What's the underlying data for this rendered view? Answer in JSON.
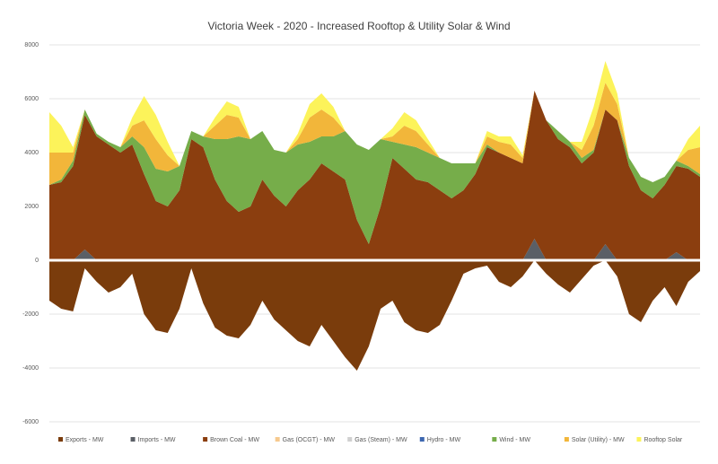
{
  "chart_data": {
    "type": "stacked-area",
    "title": "Victoria Week - 2020 - Increased Rooftop & Utility Solar & Wind",
    "ylim": [
      -6000,
      8000
    ],
    "yticks": [
      -6000,
      -4000,
      -2000,
      0,
      2000,
      4000,
      6000,
      8000
    ],
    "grid": true,
    "legend": "bottom",
    "series": [
      {
        "name": "Exports - MW",
        "color": "#7a3c0c",
        "values": [
          -1500,
          -1800,
          -1900,
          -300,
          -800,
          -1200,
          -1000,
          -500,
          -2000,
          -2600,
          -2700,
          -1800,
          -300,
          -1600,
          -2500,
          -2800,
          -2900,
          -2400,
          -1500,
          -2200,
          -2600,
          -3000,
          -3200,
          -2400,
          -3000,
          -3600,
          -4100,
          -3200,
          -1800,
          -1500,
          -2300,
          -2600,
          -2700,
          -2400,
          -1500,
          -500,
          -300,
          -200,
          -800,
          -1000,
          -600,
          0,
          -500,
          -900,
          -1200,
          -700,
          -200,
          0,
          -600,
          -2000,
          -2300,
          -1500,
          -1000,
          -1700,
          -800,
          -400
        ]
      },
      {
        "name": "Imports - MW",
        "color": "#5a5f66",
        "values": [
          0,
          0,
          0,
          400,
          0,
          0,
          0,
          0,
          0,
          0,
          0,
          0,
          0,
          0,
          0,
          0,
          0,
          0,
          0,
          0,
          0,
          0,
          0,
          0,
          0,
          0,
          0,
          0,
          0,
          0,
          0,
          0,
          0,
          0,
          0,
          0,
          0,
          0,
          0,
          0,
          0,
          800,
          0,
          0,
          0,
          0,
          0,
          600,
          0,
          0,
          0,
          0,
          0,
          300,
          0,
          0
        ]
      },
      {
        "name": "Brown Coal - MW",
        "color": "#8b3e0f",
        "values": [
          2800,
          2900,
          3500,
          5000,
          4600,
          4300,
          4000,
          4300,
          3200,
          2200,
          2000,
          2600,
          4500,
          4200,
          3000,
          2200,
          1800,
          2000,
          3000,
          2400,
          2000,
          2600,
          3000,
          3600,
          3300,
          3000,
          1500,
          600,
          2000,
          3800,
          3400,
          3000,
          2900,
          2600,
          2300,
          2600,
          3200,
          4200,
          4000,
          3800,
          3600,
          5500,
          5200,
          4500,
          4200,
          3600,
          4000,
          5000,
          5200,
          3500,
          2600,
          2300,
          2800,
          3200,
          3400,
          3100
        ]
      },
      {
        "name": "Gas (OCGT) - MW",
        "color": "#f6c98e",
        "values": [
          0,
          0,
          0,
          0,
          0,
          0,
          0,
          0,
          0,
          0,
          0,
          0,
          0,
          0,
          0,
          0,
          0,
          0,
          0,
          0,
          0,
          0,
          0,
          0,
          0,
          0,
          0,
          0,
          0,
          0,
          0,
          0,
          0,
          0,
          0,
          0,
          0,
          0,
          0,
          0,
          0,
          0,
          0,
          0,
          0,
          0,
          0,
          0,
          0,
          0,
          0,
          0,
          0,
          0,
          0,
          0
        ]
      },
      {
        "name": "Gas (Steam) - MW",
        "color": "#d0d0d0",
        "values": [
          0,
          0,
          0,
          0,
          0,
          0,
          0,
          0,
          0,
          0,
          0,
          0,
          0,
          0,
          0,
          0,
          0,
          0,
          0,
          0,
          0,
          0,
          0,
          0,
          0,
          0,
          0,
          0,
          0,
          0,
          0,
          0,
          0,
          0,
          0,
          0,
          0,
          0,
          0,
          0,
          0,
          0,
          0,
          0,
          0,
          0,
          0,
          0,
          0,
          0,
          0,
          0,
          0,
          0,
          0,
          0
        ]
      },
      {
        "name": "Hydro - MW",
        "color": "#3d67b0",
        "values": [
          0,
          0,
          0,
          0,
          0,
          0,
          0,
          0,
          0,
          0,
          0,
          0,
          0,
          0,
          0,
          0,
          0,
          0,
          0,
          0,
          0,
          0,
          0,
          0,
          0,
          0,
          0,
          0,
          0,
          0,
          0,
          0,
          0,
          0,
          0,
          0,
          0,
          0,
          0,
          0,
          0,
          0,
          0,
          0,
          0,
          0,
          0,
          0,
          0,
          0,
          0,
          0,
          0,
          0,
          0,
          0
        ]
      },
      {
        "name": "Wind - MW",
        "color": "#76ad4a",
        "values": [
          0,
          100,
          200,
          200,
          100,
          100,
          200,
          300,
          1000,
          1200,
          1300,
          900,
          300,
          400,
          1500,
          2300,
          2800,
          2500,
          1800,
          1700,
          2000,
          1700,
          1400,
          1000,
          1300,
          1800,
          2800,
          3500,
          2500,
          600,
          900,
          1200,
          1100,
          1200,
          1300,
          1000,
          400,
          100,
          0,
          0,
          0,
          0,
          0,
          300,
          200,
          200,
          100,
          0,
          0,
          300,
          500,
          600,
          300,
          200,
          100,
          100
        ]
      },
      {
        "name": "Solar (Utility) - MW",
        "color": "#f2b63a",
        "values": [
          1200,
          1000,
          300,
          0,
          0,
          0,
          0,
          400,
          1000,
          1100,
          600,
          0,
          0,
          0,
          500,
          900,
          700,
          0,
          0,
          0,
          0,
          200,
          900,
          1000,
          700,
          0,
          0,
          0,
          0,
          200,
          700,
          600,
          300,
          0,
          0,
          0,
          0,
          300,
          400,
          500,
          200,
          0,
          0,
          0,
          0,
          300,
          900,
          1000,
          600,
          0,
          0,
          0,
          0,
          0,
          600,
          1000
        ]
      },
      {
        "name": "Rooftop Solar",
        "color": "#fcf35a",
        "values": [
          1500,
          1000,
          200,
          0,
          0,
          0,
          0,
          300,
          900,
          900,
          500,
          0,
          0,
          0,
          300,
          500,
          400,
          0,
          0,
          0,
          0,
          200,
          500,
          600,
          400,
          0,
          0,
          0,
          0,
          300,
          500,
          400,
          200,
          0,
          0,
          0,
          0,
          200,
          200,
          300,
          100,
          0,
          0,
          0,
          0,
          300,
          700,
          800,
          400,
          0,
          0,
          0,
          0,
          0,
          400,
          800
        ]
      }
    ]
  }
}
